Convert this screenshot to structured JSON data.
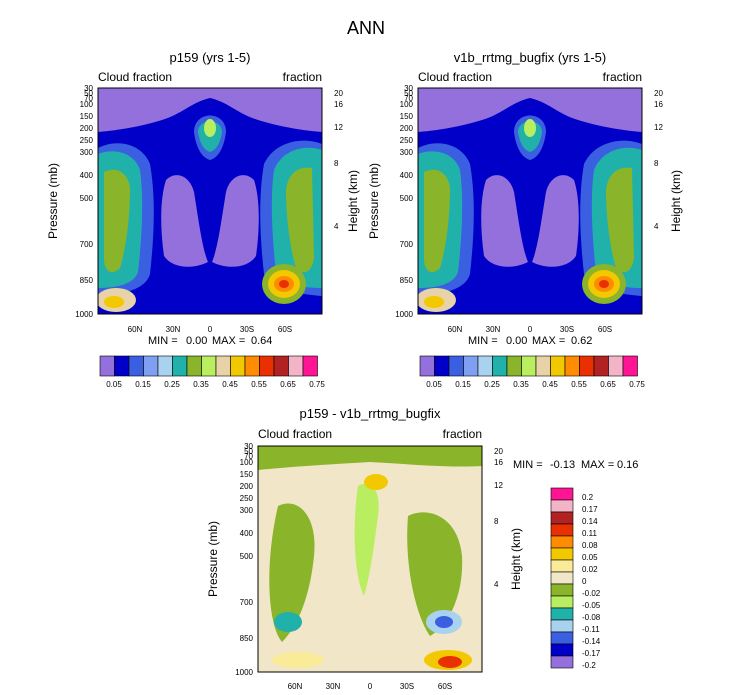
{
  "figure": {
    "title": "ANN"
  },
  "chart_data": [
    {
      "type": "contour",
      "title": "p159 (yrs 1-5)",
      "left_label": "Cloud fraction",
      "right_label": "fraction",
      "ylabel": "Pressure (mb)",
      "ylabel_right": "Height (km)",
      "pressure_ticks": [
        "30",
        "50",
        "70",
        "100",
        "150",
        "200",
        "250",
        "300",
        "400",
        "500",
        "700",
        "850",
        "1000"
      ],
      "height_ticks": [
        "20",
        "16",
        "12",
        "8",
        "4"
      ],
      "lat_ticks": [
        "60N",
        "30N",
        "0",
        "30S",
        "60S"
      ],
      "min_text": "MIN =",
      "min_value": "0.00",
      "max_text": "MAX =",
      "max_value": "0.64",
      "colorbar_labels": [
        "0.05",
        "0.15",
        "0.25",
        "0.35",
        "0.45",
        "0.55",
        "0.65",
        "0.75"
      ],
      "colorbar_colors": [
        "#9370DB",
        "#0000C8",
        "#3A5FE0",
        "#7FA0F0",
        "#A9D2F0",
        "#20B2AA",
        "#8AB42A",
        "#B8EE60",
        "#E8D2A8",
        "#F2C800",
        "#FF8C00",
        "#E83000",
        "#B22222",
        "#F4B4C8",
        "#FF1493"
      ]
    },
    {
      "type": "contour",
      "title": "v1b_rrtmg_bugfix (yrs 1-5)",
      "left_label": "Cloud fraction",
      "right_label": "fraction",
      "ylabel": "Pressure (mb)",
      "ylabel_right": "Height (km)",
      "pressure_ticks": [
        "30",
        "50",
        "70",
        "100",
        "150",
        "200",
        "250",
        "300",
        "400",
        "500",
        "700",
        "850",
        "1000"
      ],
      "height_ticks": [
        "20",
        "16",
        "12",
        "8",
        "4"
      ],
      "lat_ticks": [
        "60N",
        "30N",
        "0",
        "30S",
        "60S"
      ],
      "min_text": "MIN =",
      "min_value": "0.00",
      "max_text": "MAX =",
      "max_value": "0.62",
      "colorbar_labels": [
        "0.05",
        "0.15",
        "0.25",
        "0.35",
        "0.45",
        "0.55",
        "0.65",
        "0.75"
      ],
      "colorbar_colors": [
        "#9370DB",
        "#0000C8",
        "#3A5FE0",
        "#7FA0F0",
        "#A9D2F0",
        "#20B2AA",
        "#8AB42A",
        "#B8EE60",
        "#E8D2A8",
        "#F2C800",
        "#FF8C00",
        "#E83000",
        "#B22222",
        "#F4B4C8",
        "#FF1493"
      ]
    },
    {
      "type": "contour",
      "title": "p159 - v1b_rrtmg_bugfix",
      "left_label": "Cloud fraction",
      "right_label": "fraction",
      "ylabel": "Pressure (mb)",
      "ylabel_right": "Height (km)",
      "pressure_ticks": [
        "30",
        "50",
        "70",
        "100",
        "150",
        "200",
        "250",
        "300",
        "400",
        "500",
        "700",
        "850",
        "1000"
      ],
      "height_ticks": [
        "20",
        "16",
        "12",
        "8",
        "4"
      ],
      "lat_ticks": [
        "60N",
        "30N",
        "0",
        "30S",
        "60S"
      ],
      "min_text": "MIN =",
      "min_value": "-0.13",
      "max_text": "MAX =",
      "max_value": "0.16",
      "colorbar_labels": [
        "0.2",
        "0.17",
        "0.14",
        "0.11",
        "0.08",
        "0.05",
        "0.02",
        "0",
        "-0.02",
        "-0.05",
        "-0.08",
        "-0.11",
        "-0.14",
        "-0.17",
        "-0.2"
      ],
      "colorbar_colors": [
        "#FF1493",
        "#F4B4C8",
        "#B22222",
        "#E83000",
        "#FF8C00",
        "#F2C800",
        "#FAEB98",
        "#F2E6C8",
        "#8AB42A",
        "#B8EE60",
        "#20B2AA",
        "#A9D2F0",
        "#3A5FE0",
        "#0000C8",
        "#9370DB"
      ]
    }
  ]
}
